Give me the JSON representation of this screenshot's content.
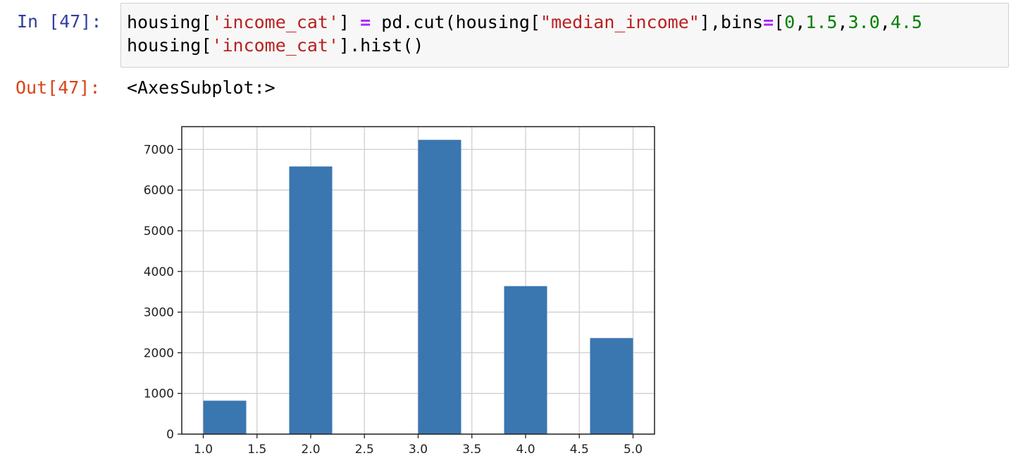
{
  "input_cell": {
    "prompt": "In [47]:",
    "line1": [
      {
        "t": "housing[",
        "c": "plain"
      },
      {
        "t": "'income_cat'",
        "c": "str"
      },
      {
        "t": "] ",
        "c": "plain"
      },
      {
        "t": "=",
        "c": "op"
      },
      {
        "t": " pd.cut(housing[",
        "c": "plain"
      },
      {
        "t": "\"median_income\"",
        "c": "str"
      },
      {
        "t": "],bins",
        "c": "plain"
      },
      {
        "t": "=",
        "c": "op"
      },
      {
        "t": "[",
        "c": "plain"
      },
      {
        "t": "0",
        "c": "num"
      },
      {
        "t": ",",
        "c": "plain"
      },
      {
        "t": "1.5",
        "c": "num"
      },
      {
        "t": ",",
        "c": "plain"
      },
      {
        "t": "3.0",
        "c": "num"
      },
      {
        "t": ",",
        "c": "plain"
      },
      {
        "t": "4.5",
        "c": "num"
      }
    ],
    "line2": [
      {
        "t": "housing[",
        "c": "plain"
      },
      {
        "t": "'income_cat'",
        "c": "str"
      },
      {
        "t": "].hist()",
        "c": "plain"
      }
    ]
  },
  "output_cell": {
    "prompt": "Out[47]:",
    "text": "<AxesSubplot:>"
  },
  "colors": {
    "bar": "#3a76b0",
    "grid": "#cfcfcf",
    "axis": "#222222"
  },
  "chart_data": {
    "type": "bar",
    "title": "",
    "xlabel": "",
    "ylabel": "",
    "grid": true,
    "xlim": [
      0.8,
      5.2
    ],
    "ylim": [
      0,
      7560
    ],
    "x_ticks": [
      1.0,
      1.5,
      2.0,
      2.5,
      3.0,
      3.5,
      4.0,
      4.5,
      5.0
    ],
    "x_tick_labels": [
      "1.0",
      "1.5",
      "2.0",
      "2.5",
      "3.0",
      "3.5",
      "4.0",
      "4.5",
      "5.0"
    ],
    "y_ticks": [
      0,
      1000,
      2000,
      3000,
      4000,
      5000,
      6000,
      7000
    ],
    "y_tick_labels": [
      "0",
      "1000",
      "2000",
      "3000",
      "4000",
      "5000",
      "6000",
      "7000"
    ],
    "bars": [
      {
        "x0": 1.0,
        "x1": 1.4,
        "value": 822
      },
      {
        "x0": 1.8,
        "x1": 2.2,
        "value": 6581
      },
      {
        "x0": 3.0,
        "x1": 3.4,
        "value": 7236
      },
      {
        "x0": 3.8,
        "x1": 4.2,
        "value": 3639
      },
      {
        "x0": 4.6,
        "x1": 5.0,
        "value": 2362
      }
    ]
  }
}
